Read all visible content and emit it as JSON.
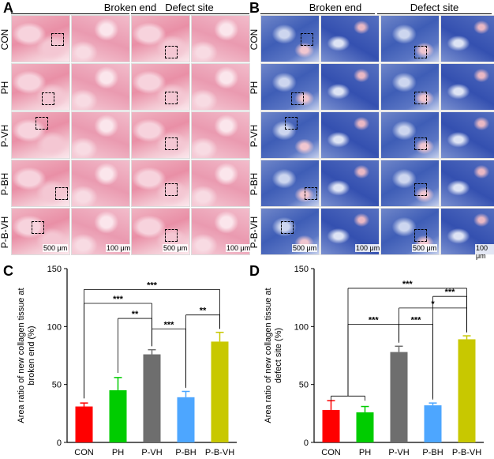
{
  "panels_top": {
    "A": {
      "letter": "A",
      "col1": "Broken end",
      "col2": "Defect site"
    },
    "B": {
      "letter": "B",
      "col1": "Broken end",
      "col2": "Defect site"
    },
    "rows": [
      "CON",
      "PH",
      "P-VH",
      "P-BH",
      "P-B-VH"
    ],
    "scale_low": "500 μm",
    "scale_high": "100 μm"
  },
  "chart_data": [
    {
      "letter": "C",
      "type": "bar",
      "title": "",
      "ylabel": "Area ratio of new collagen tissue at broken end (%)",
      "ylabel_lines": [
        "Area ratio of new collagen tissue at",
        "broken end (%)"
      ],
      "categories": [
        "CON",
        "PH",
        "P-VH",
        "P-BH",
        "P-B-VH"
      ],
      "values": [
        31,
        45,
        76,
        39,
        87
      ],
      "errors": [
        3,
        11,
        4,
        5,
        8
      ],
      "colors": [
        "#ff0000",
        "#00cc00",
        "#6e6e6e",
        "#4da6ff",
        "#c8c800"
      ],
      "ylim": [
        0,
        150
      ],
      "yticks": [
        0,
        50,
        100,
        150
      ],
      "significance": [
        {
          "from": 0,
          "to": 2,
          "label": "***"
        },
        {
          "from": 0,
          "to": 4,
          "label": "***"
        },
        {
          "from": 1,
          "to": 2,
          "label": "**"
        },
        {
          "from": 2,
          "to": 3,
          "label": "***"
        },
        {
          "from": 3,
          "to": 4,
          "label": "**"
        }
      ]
    },
    {
      "letter": "D",
      "type": "bar",
      "title": "",
      "ylabel": "Area ratio of new collagen tissue at defect site (%)",
      "ylabel_lines": [
        "Area ratio of new collagen tissue at",
        "defect site (%)"
      ],
      "categories": [
        "CON",
        "PH",
        "P-VH",
        "P-BH",
        "P-B-VH"
      ],
      "values": [
        28,
        26,
        78,
        32,
        89
      ],
      "errors": [
        8,
        5,
        5,
        2,
        3
      ],
      "colors": [
        "#ff0000",
        "#00cc00",
        "#6e6e6e",
        "#4da6ff",
        "#c8c800"
      ],
      "ylim": [
        0,
        150
      ],
      "yticks": [
        0,
        50,
        100,
        150
      ],
      "significance": [
        {
          "from": "0-1",
          "to": 2,
          "label": "***"
        },
        {
          "from": "0-1",
          "to": 4,
          "label": "***"
        },
        {
          "from": 2,
          "to": 3,
          "label": "***"
        },
        {
          "from": 2,
          "to": 4,
          "label": "*"
        },
        {
          "from": 3,
          "to": 4,
          "label": "***"
        }
      ]
    }
  ]
}
